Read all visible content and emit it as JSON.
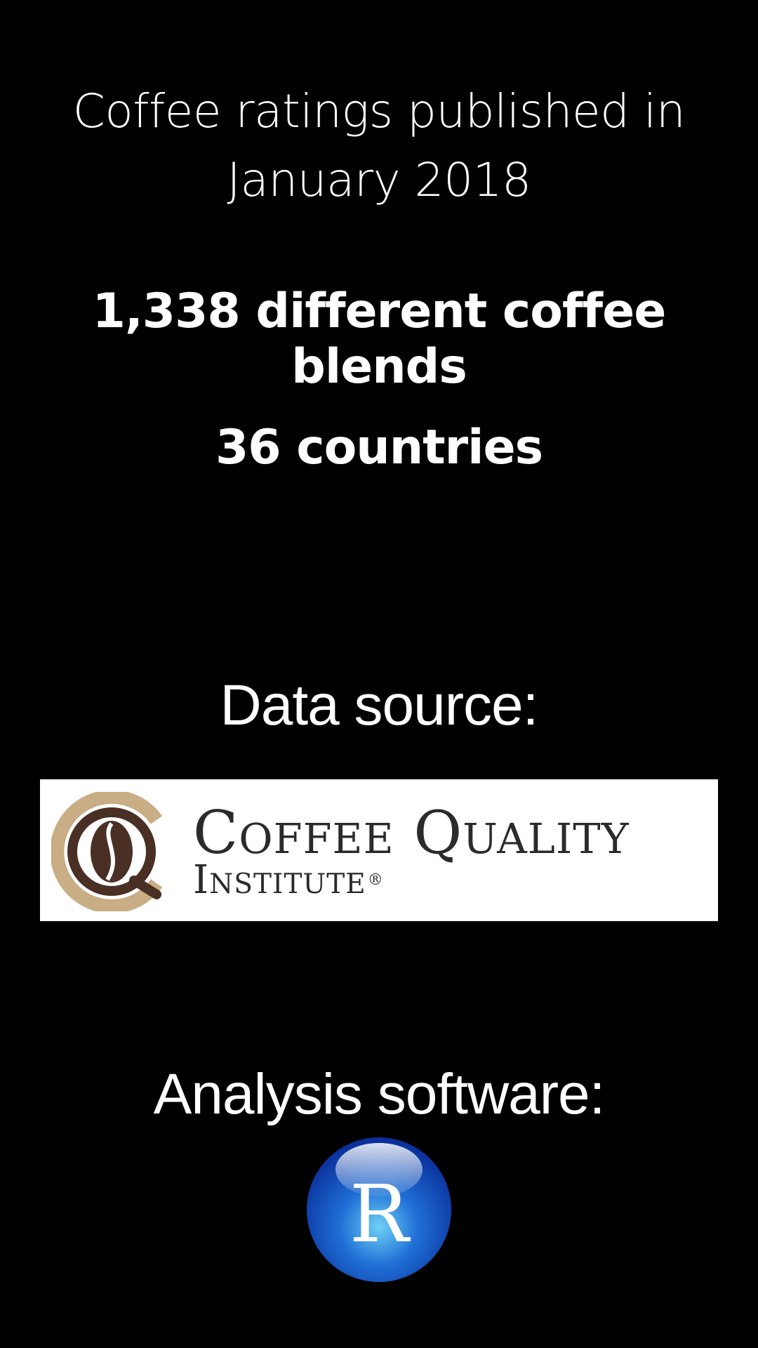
{
  "headline": {
    "line1": "Coffee ratings published in",
    "line2": "January 2018"
  },
  "stats": {
    "blends": "1,338 different coffee blends",
    "countries": "36 countries"
  },
  "data_source": {
    "label": "Data source:",
    "logo": {
      "name": "Coffee Quality Institute",
      "line1": "Coffee Quality",
      "line2": "Institute",
      "registered_mark": "®",
      "icon": "coffee-bean-emblem-icon",
      "colors": {
        "ring": "#c9ad84",
        "bean": "#4a3024",
        "text": "#2b2b2b"
      }
    }
  },
  "analysis_software": {
    "label": "Analysis software:",
    "logo": {
      "letter": "R",
      "icon": "r-language-logo-icon",
      "colors": {
        "sphere_light": "#6fd0f5",
        "sphere_mid": "#1f6fd6",
        "sphere_dark": "#0a2f9a"
      }
    }
  }
}
